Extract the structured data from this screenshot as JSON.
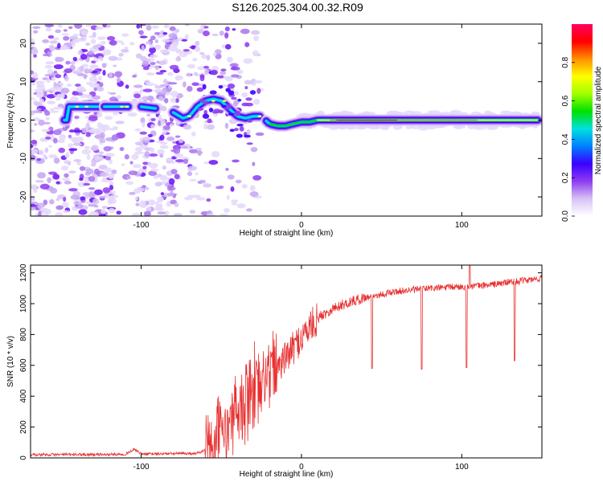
{
  "title": "S126.2025.304.00.32.R09",
  "chart_data": [
    {
      "type": "heatmap",
      "name": "spectrogram",
      "xlabel": "Height of straight line (km)",
      "ylabel": "Frequency (Hz)",
      "xlim": [
        -169,
        150
      ],
      "ylim": [
        -25,
        25
      ],
      "x_ticks": [
        -100,
        0,
        100
      ],
      "y_ticks": [
        -20,
        -10,
        0,
        10,
        20
      ],
      "colorbar": {
        "label": "Normalized spectral amplitude",
        "range": [
          0,
          1
        ],
        "ticks": [
          "0.0",
          "0.2",
          "0.4",
          "0.6",
          "0.8"
        ],
        "colors": [
          "#ffffff",
          "#d6c2f5",
          "#8e3cf0",
          "#3a00ff",
          "#0080ff",
          "#00e0e0",
          "#00e000",
          "#a0ff00",
          "#ffff00",
          "#ff9000",
          "#ff0000",
          "#ff0060"
        ]
      },
      "ridge": {
        "description_points_x": [
          -145,
          -130,
          -115,
          -100,
          -90,
          -80,
          -74,
          -70,
          -65,
          -60,
          -55,
          -50,
          -45,
          -40,
          -35,
          -30,
          -25,
          -20,
          -15,
          -10,
          -5,
          0,
          5,
          10,
          20,
          40,
          60,
          80,
          100,
          120,
          147
        ],
        "freq_hz": [
          3.5,
          3.5,
          3.5,
          3.5,
          3.0,
          2.0,
          0.5,
          1.0,
          3.5,
          5.0,
          5.5,
          5.0,
          3.0,
          1.0,
          0.5,
          1.0,
          1.0,
          -1.0,
          -1.5,
          -1.5,
          -1.0,
          -0.5,
          -0.5,
          0.0,
          0.0,
          0.0,
          0.0,
          0.0,
          0.0,
          0.0,
          0.0
        ]
      }
    },
    {
      "type": "line",
      "name": "snr",
      "xlabel": "Height of straight line (km)",
      "ylabel": "SNR (10 * v/v)",
      "xlim": [
        -169,
        150
      ],
      "ylim": [
        0,
        1250
      ],
      "x_ticks": [
        -100,
        0,
        100
      ],
      "y_ticks": [
        0,
        200,
        400,
        600,
        800,
        1000,
        1200
      ],
      "color": "#e83030",
      "series_profile": {
        "x": [
          -169,
          -150,
          -120,
          -110,
          -104,
          -100,
          -80,
          -65,
          -58,
          -54,
          -48,
          -42,
          -36,
          -30,
          -24,
          -18,
          -12,
          -6,
          0,
          6,
          12,
          20,
          30,
          40,
          50,
          60,
          70,
          80,
          90,
          100,
          110,
          120,
          130,
          140,
          150
        ],
        "y": [
          20,
          22,
          22,
          25,
          55,
          25,
          28,
          30,
          60,
          120,
          200,
          300,
          380,
          460,
          520,
          580,
          620,
          700,
          780,
          860,
          920,
          970,
          1010,
          1040,
          1060,
          1080,
          1090,
          1100,
          1105,
          1110,
          1115,
          1125,
          1140,
          1150,
          1165
        ]
      },
      "spikes": [
        {
          "x": 44,
          "y": 580
        },
        {
          "x": 75,
          "y": 575
        },
        {
          "x": 103,
          "y": 585
        },
        {
          "x": 105,
          "y": 1250
        },
        {
          "x": 133,
          "y": 630
        }
      ]
    }
  ]
}
